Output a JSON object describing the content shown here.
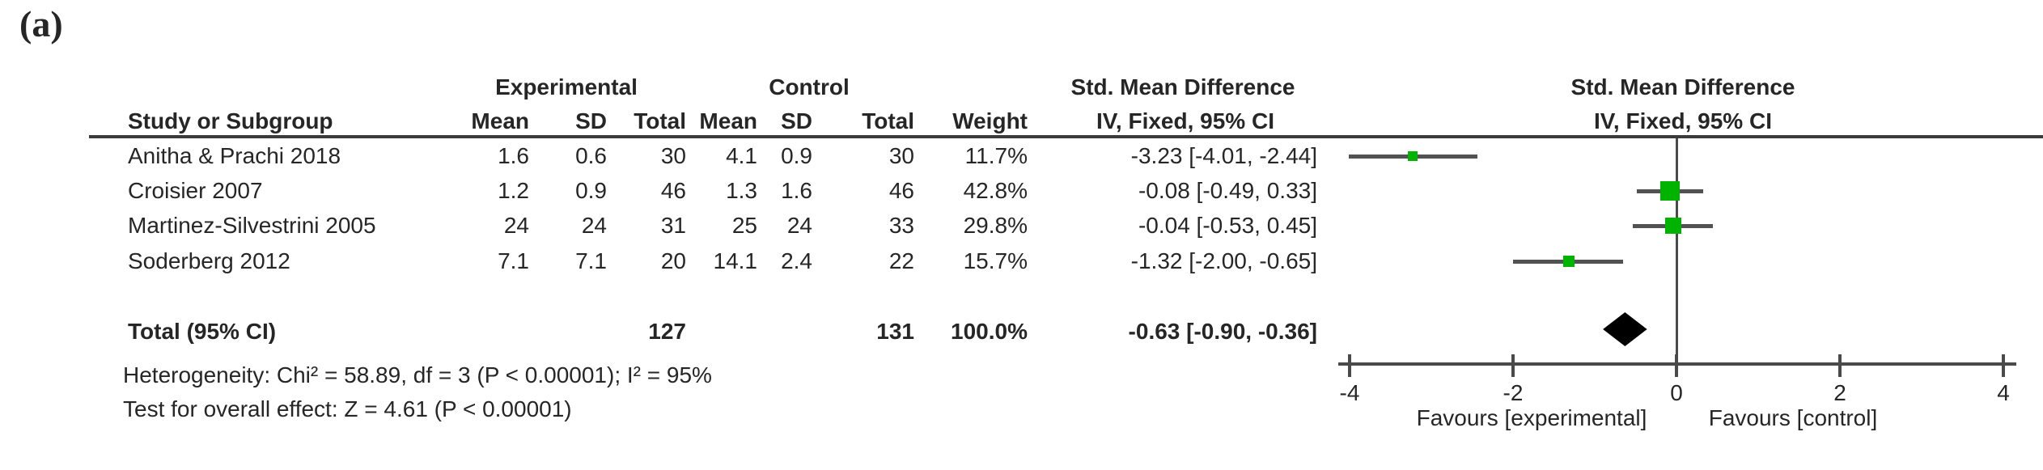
{
  "panel_label": "(a)",
  "colors": {
    "square": "#00b300",
    "diamond": "#000000",
    "line": "#4a4a4a",
    "ci_line": "#525252",
    "text": "#262626"
  },
  "header": {
    "experimental": "Experimental",
    "control": "Control",
    "smd_left": "Std. Mean Difference",
    "smd_right": "Std. Mean Difference",
    "study": "Study or Subgroup",
    "mean_e": "Mean",
    "sd_e": "SD",
    "total_e": "Total",
    "mean_c": "Mean",
    "sd_c": "SD",
    "total_c": "Total",
    "weight": "Weight",
    "iv_left": "IV, Fixed, 95% CI",
    "iv_right": "IV, Fixed, 95% CI"
  },
  "footnotes": {
    "heterogeneity": "Heterogeneity: Chi² = 58.89, df = 3 (P < 0.00001); I² = 95%",
    "overall_effect": "Test for overall effect: Z = 4.61 (P < 0.00001)"
  },
  "chart_data": {
    "type": "forest",
    "effect_measure": "Std. Mean Difference",
    "method": "IV, Fixed, 95% CI",
    "xlim": [
      -4,
      4
    ],
    "ticks": [
      -4,
      -2,
      0,
      2,
      4
    ],
    "favours_left": "Favours [experimental]",
    "favours_right": "Favours [control]",
    "studies": [
      {
        "name": "Anitha & Prachi 2018",
        "mean_e": "1.6",
        "sd_e": "0.6",
        "total_e": "30",
        "mean_c": "4.1",
        "sd_c": "0.9",
        "total_c": "30",
        "weight": "11.7%",
        "weight_pct": 11.7,
        "smd": -3.23,
        "ci_low": -4.01,
        "ci_high": -2.44,
        "ci_label": "-3.23 [-4.01, -2.44]"
      },
      {
        "name": "Croisier 2007",
        "mean_e": "1.2",
        "sd_e": "0.9",
        "total_e": "46",
        "mean_c": "1.3",
        "sd_c": "1.6",
        "total_c": "46",
        "weight": "42.8%",
        "weight_pct": 42.8,
        "smd": -0.08,
        "ci_low": -0.49,
        "ci_high": 0.33,
        "ci_label": "-0.08 [-0.49, 0.33]"
      },
      {
        "name": "Martinez-Silvestrini 2005",
        "mean_e": "24",
        "sd_e": "24",
        "total_e": "31",
        "mean_c": "25",
        "sd_c": "24",
        "total_c": "33",
        "weight": "29.8%",
        "weight_pct": 29.8,
        "smd": -0.04,
        "ci_low": -0.53,
        "ci_high": 0.45,
        "ci_label": "-0.04 [-0.53, 0.45]"
      },
      {
        "name": "Soderberg 2012",
        "mean_e": "7.1",
        "sd_e": "7.1",
        "total_e": "20",
        "mean_c": "14.1",
        "sd_c": "2.4",
        "total_c": "22",
        "weight": "15.7%",
        "weight_pct": 15.7,
        "smd": -1.32,
        "ci_low": -2.0,
        "ci_high": -0.65,
        "ci_label": "-1.32 [-2.00, -0.65]"
      }
    ],
    "total": {
      "label": "Total (95% CI)",
      "total_e": "127",
      "total_c": "131",
      "weight": "100.0%",
      "smd": -0.63,
      "ci_low": -0.9,
      "ci_high": -0.36,
      "ci_label": "-0.63 [-0.90, -0.36]"
    }
  }
}
